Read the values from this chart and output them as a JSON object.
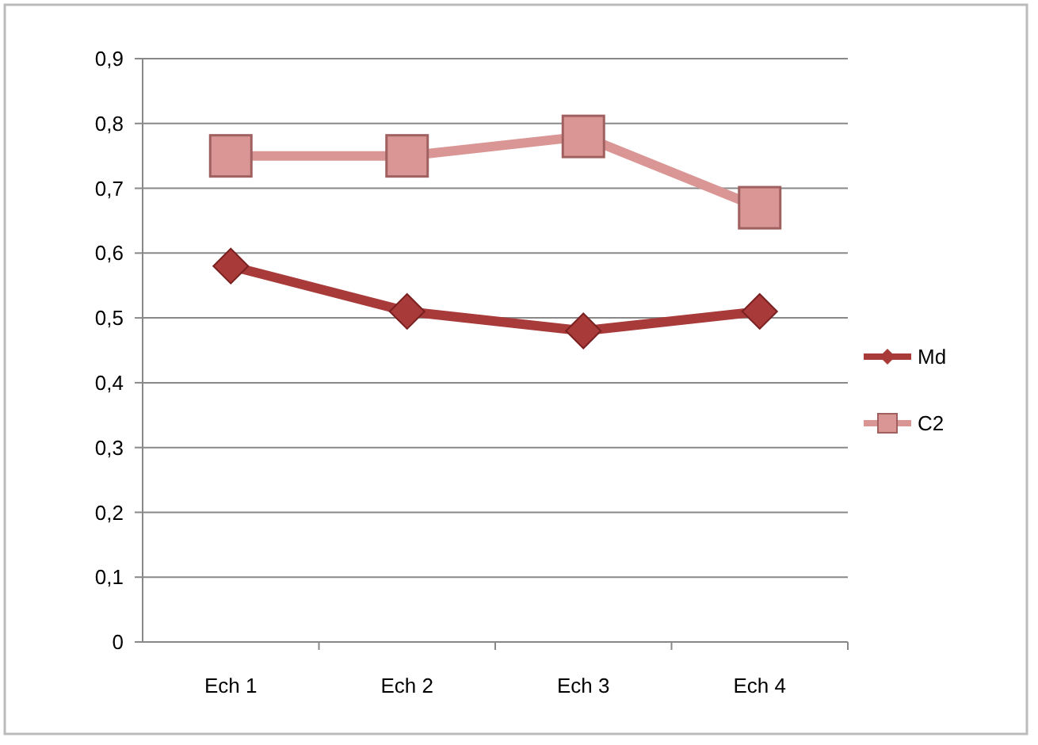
{
  "chart_data": {
    "type": "line",
    "categories": [
      "Ech 1",
      "Ech 2",
      "Ech 3",
      "Ech 4"
    ],
    "series": [
      {
        "name": "Md",
        "color": "#a83a3a",
        "marker": "diamond",
        "values": [
          0.58,
          0.51,
          0.48,
          0.51
        ]
      },
      {
        "name": "C2",
        "color": "#d99694",
        "marker": "square",
        "values": [
          0.75,
          0.75,
          0.78,
          0.67
        ]
      }
    ],
    "ylim": [
      0,
      0.9
    ],
    "yticks": [
      0,
      {
        "value": 0.1,
        "label": "0,1"
      },
      {
        "value": 0.2,
        "label": "0,2"
      },
      {
        "value": 0.3,
        "label": "0,3"
      },
      {
        "value": 0.4,
        "label": "0,4"
      },
      {
        "value": 0.5,
        "label": "0,5"
      },
      {
        "value": 0.6,
        "label": "0,6"
      },
      {
        "value": 0.7,
        "label": "0,7"
      },
      {
        "value": 0.8,
        "label": "0,8"
      },
      {
        "value": 0.9,
        "label": "0,9"
      }
    ],
    "grid": "y",
    "legend": "right",
    "line_style": "solid"
  }
}
